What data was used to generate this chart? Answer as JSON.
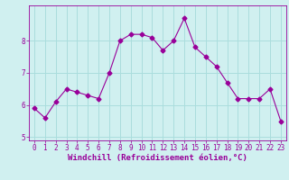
{
  "x": [
    0,
    1,
    2,
    3,
    4,
    5,
    6,
    7,
    8,
    9,
    10,
    11,
    12,
    13,
    14,
    15,
    16,
    17,
    18,
    19,
    20,
    21,
    22,
    23
  ],
  "y": [
    5.9,
    5.6,
    6.1,
    6.5,
    6.4,
    6.3,
    6.2,
    7.0,
    8.0,
    8.2,
    8.2,
    8.1,
    7.7,
    8.0,
    8.7,
    7.8,
    7.5,
    7.2,
    6.7,
    6.2,
    6.2,
    6.2,
    6.5,
    5.5
  ],
  "line_color": "#990099",
  "marker": "D",
  "marker_size": 2.5,
  "bg_color": "#d0f0f0",
  "grid_color": "#aadddd",
  "xlabel": "Windchill (Refroidissement éolien,°C)",
  "xlabel_fontsize": 6.5,
  "tick_fontsize": 5.5,
  "ylim": [
    4.9,
    9.1
  ],
  "xlim": [
    -0.5,
    23.5
  ],
  "yticks": [
    5,
    6,
    7,
    8
  ],
  "xticks": [
    0,
    1,
    2,
    3,
    4,
    5,
    6,
    7,
    8,
    9,
    10,
    11,
    12,
    13,
    14,
    15,
    16,
    17,
    18,
    19,
    20,
    21,
    22,
    23
  ]
}
